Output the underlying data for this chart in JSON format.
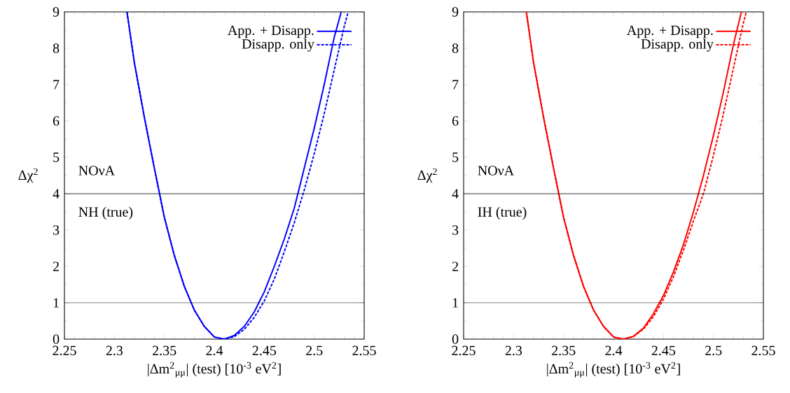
{
  "chart_data": [
    {
      "type": "line",
      "xlabel": "|Δm$^{2}$$_{μμ}$| (test) [10$^{-3}$ eV$^{2}$]",
      "ylabel": "Δχ$^{2}$",
      "xlim": [
        2.25,
        2.55
      ],
      "ylim": [
        0,
        9
      ],
      "xticks": [
        2.25,
        2.3,
        2.35,
        2.4,
        2.45,
        2.5,
        2.55
      ],
      "yticks": [
        0,
        1,
        2,
        3,
        4,
        5,
        6,
        7,
        8,
        9
      ],
      "grid": false,
      "legend": "top right",
      "annotations": [
        "NOνA",
        "NH (true)"
      ],
      "ref_lines": [
        {
          "axis": "y",
          "value": 4,
          "color": "#000000"
        },
        {
          "axis": "y",
          "value": 1,
          "color": "#000000"
        }
      ],
      "series": [
        {
          "name": "App. + Disapp.",
          "color": "#0000ff",
          "line_style": "solid",
          "x": [
            2.3126,
            2.32,
            2.33,
            2.34,
            2.35,
            2.36,
            2.37,
            2.38,
            2.39,
            2.4,
            2.41,
            2.42,
            2.43,
            2.44,
            2.45,
            2.46,
            2.47,
            2.48,
            2.49,
            2.5,
            2.51,
            2.52,
            2.527
          ],
          "values": [
            9,
            7.6,
            6.1,
            4.7,
            3.35,
            2.3,
            1.45,
            0.8,
            0.35,
            0.06,
            0,
            0.1,
            0.35,
            0.75,
            1.3,
            2.0,
            2.75,
            3.6,
            4.7,
            5.8,
            7.0,
            8.3,
            9
          ]
        },
        {
          "name": "Disapp. only",
          "color": "#0000ff",
          "line_style": "dashed",
          "x": [
            2.3126,
            2.32,
            2.33,
            2.34,
            2.35,
            2.36,
            2.37,
            2.38,
            2.39,
            2.4,
            2.41,
            2.42,
            2.43,
            2.44,
            2.45,
            2.46,
            2.47,
            2.48,
            2.49,
            2.5,
            2.51,
            2.52,
            2.53,
            2.534
          ],
          "values": [
            9,
            7.6,
            6.1,
            4.7,
            3.35,
            2.3,
            1.45,
            0.8,
            0.35,
            0.06,
            0,
            0.07,
            0.27,
            0.6,
            1.05,
            1.65,
            2.4,
            3.2,
            4.1,
            5.1,
            6.2,
            7.4,
            8.6,
            9
          ]
        }
      ]
    },
    {
      "type": "line",
      "xlabel": "|Δm$^{2}$$_{μμ}$| (test) [10$^{-3}$ eV$^{2}$]",
      "ylabel": "Δχ$^{2}$",
      "xlim": [
        2.25,
        2.55
      ],
      "ylim": [
        0,
        9
      ],
      "xticks": [
        2.25,
        2.3,
        2.35,
        2.4,
        2.45,
        2.5,
        2.55
      ],
      "yticks": [
        0,
        1,
        2,
        3,
        4,
        5,
        6,
        7,
        8,
        9
      ],
      "grid": false,
      "legend": "top right",
      "annotations": [
        "NOνA",
        "IH (true)"
      ],
      "ref_lines": [
        {
          "axis": "y",
          "value": 4,
          "color": "#000000"
        },
        {
          "axis": "y",
          "value": 1,
          "color": "#000000"
        }
      ],
      "series": [
        {
          "name": "App. + Disapp.",
          "color": "#ff0000",
          "line_style": "solid",
          "x": [
            2.3128,
            2.32,
            2.33,
            2.34,
            2.35,
            2.36,
            2.37,
            2.38,
            2.39,
            2.4,
            2.41,
            2.42,
            2.43,
            2.44,
            2.45,
            2.46,
            2.47,
            2.48,
            2.49,
            2.5,
            2.51,
            2.52,
            2.528
          ],
          "values": [
            9,
            7.6,
            6.1,
            4.7,
            3.35,
            2.3,
            1.45,
            0.8,
            0.35,
            0.06,
            0,
            0.08,
            0.3,
            0.7,
            1.2,
            1.85,
            2.6,
            3.5,
            4.5,
            5.6,
            6.8,
            8.1,
            9
          ]
        },
        {
          "name": "Disapp. only",
          "color": "#ff0000",
          "line_style": "dashed",
          "x": [
            2.3128,
            2.32,
            2.33,
            2.34,
            2.35,
            2.36,
            2.37,
            2.38,
            2.39,
            2.4,
            2.41,
            2.42,
            2.43,
            2.44,
            2.45,
            2.46,
            2.47,
            2.48,
            2.49,
            2.5,
            2.51,
            2.52,
            2.53,
            2.533
          ],
          "values": [
            9,
            7.6,
            6.1,
            4.7,
            3.35,
            2.3,
            1.45,
            0.8,
            0.35,
            0.06,
            0,
            0.07,
            0.28,
            0.62,
            1.1,
            1.72,
            2.45,
            3.25,
            4.0,
            5.05,
            6.2,
            7.45,
            8.7,
            9
          ]
        }
      ]
    }
  ]
}
